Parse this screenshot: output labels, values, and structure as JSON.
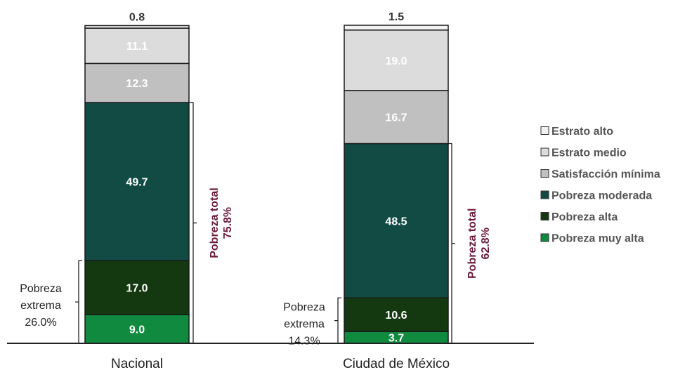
{
  "chart_data": {
    "type": "bar",
    "stacked": true,
    "categories": [
      "Nacional",
      "Ciudad de México"
    ],
    "ylim": [
      0,
      100
    ],
    "series": [
      {
        "name": "Pobreza muy alta",
        "values": [
          9.0,
          3.7
        ],
        "color": "#0f8a3e",
        "label_color": "#ffffff"
      },
      {
        "name": "Pobreza alta",
        "values": [
          17.0,
          10.6
        ],
        "color": "#14380f",
        "label_color": "#ffffff"
      },
      {
        "name": "Pobreza moderada",
        "values": [
          49.7,
          48.5
        ],
        "color": "#114b44",
        "label_color": "#ffffff"
      },
      {
        "name": "Satisfacción mínima",
        "values": [
          12.3,
          16.7
        ],
        "color": "#c0c0c0",
        "label_color": "#ffffff"
      },
      {
        "name": "Estrato medio",
        "values": [
          11.1,
          19.0
        ],
        "color": "#dcdcdc",
        "label_color": "#ffffff"
      },
      {
        "name": "Estrato alto",
        "values": [
          0.8,
          1.5
        ],
        "color": "#f2f2f2",
        "label_color": "#333333"
      }
    ],
    "value_labels": [
      [
        "9.0",
        "17.0",
        "49.7",
        "12.3",
        "11.1",
        "0.8"
      ],
      [
        "3.7",
        "10.6",
        "48.5",
        "16.7",
        "19.0",
        "1.5"
      ]
    ],
    "annotations": {
      "pobreza_total": [
        {
          "title": "Pobreza total",
          "value": "75.8%"
        },
        {
          "title": "Pobreza total",
          "value": "62.8%"
        }
      ],
      "pobreza_extrema": [
        {
          "lines": [
            "Pobreza",
            "extrema",
            "26.0%"
          ]
        },
        {
          "lines": [
            "Pobreza",
            "extrema",
            "14.3%"
          ]
        }
      ],
      "annotation_color": "#6b1a3a"
    },
    "legend": {
      "placement": "right",
      "order": [
        "Estrato alto",
        "Estrato medio",
        "Satisfacción mínima",
        "Pobreza moderada",
        "Pobreza alta",
        "Pobreza muy alta"
      ]
    }
  }
}
